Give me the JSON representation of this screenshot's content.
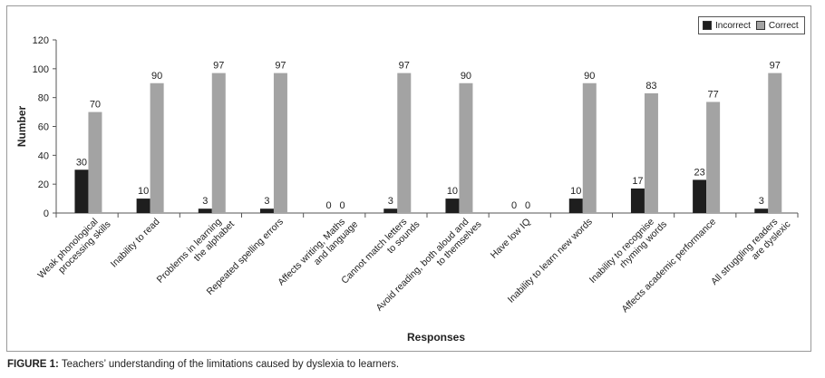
{
  "chart_data": {
    "type": "bar",
    "title": "",
    "xlabel": "Responses",
    "ylabel": "Number",
    "ylim": [
      0,
      120
    ],
    "yticks": [
      0,
      20,
      40,
      60,
      80,
      100,
      120
    ],
    "grid": false,
    "legend_position": "top-right",
    "categories": [
      "Weak phonological|processing skills",
      "Inability to read",
      "Problems in learning|the alphabet",
      "Repeated spelling errors",
      "Affects writing, Maths|and language",
      "Cannot match letters|to sounds",
      "Avoid reading, both aloud and|to themselves",
      "Have low IQ",
      "Inability to learn new words",
      "Inability to recognise|rhyming words",
      "Affects academic performance",
      "All struggling readers|are dyslexic"
    ],
    "series": [
      {
        "name": "Incorrect",
        "color": "#1e1e1e",
        "values": [
          30,
          10,
          3,
          3,
          0,
          3,
          10,
          0,
          10,
          17,
          23,
          3
        ]
      },
      {
        "name": "Correct",
        "color": "#a3a3a3",
        "values": [
          70,
          90,
          97,
          97,
          0,
          97,
          90,
          0,
          90,
          83,
          77,
          97
        ]
      }
    ]
  },
  "legend": {
    "incorrect_label": "Incorrect",
    "correct_label": "Correct"
  },
  "caption": {
    "label": "FIGURE 1:",
    "text": " Teachers’ understanding of the limitations caused by dyslexia to learners."
  }
}
